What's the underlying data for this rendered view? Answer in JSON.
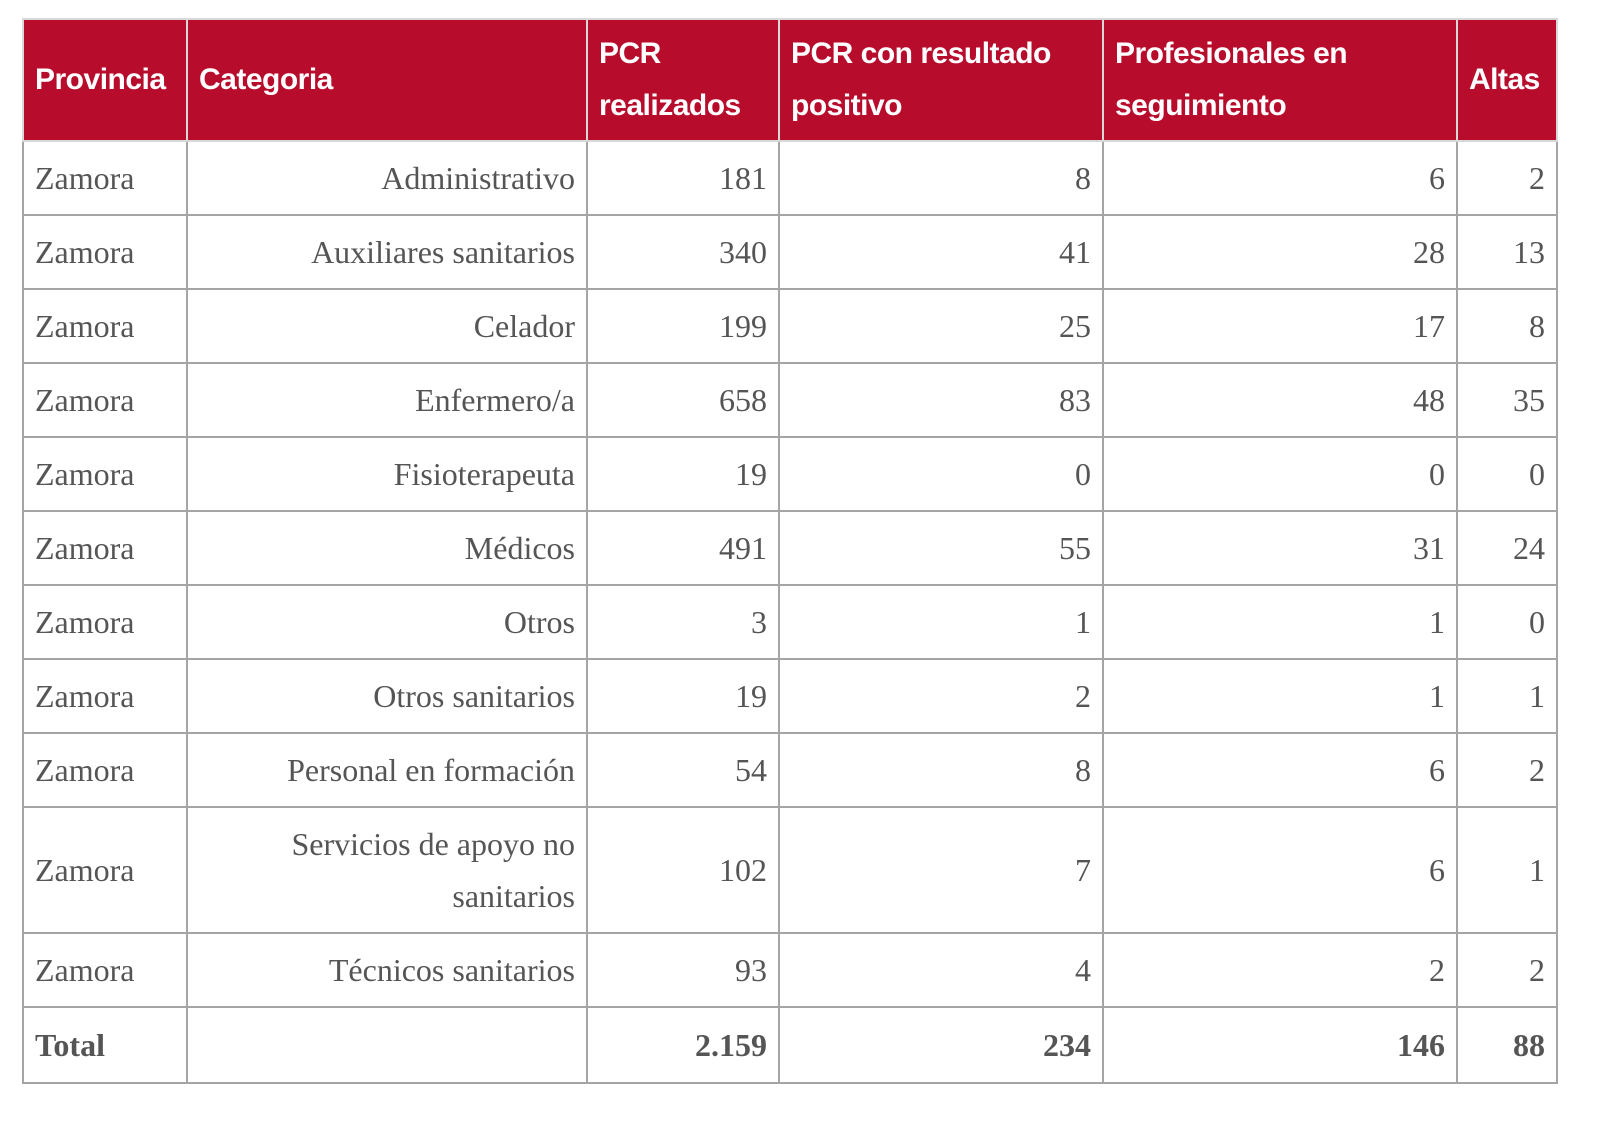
{
  "colors": {
    "header_bg": "#b80c2c",
    "header_text": "#ffffff",
    "cell_text": "#555555",
    "border": "#a5a5a5"
  },
  "headers": [
    "Provincia",
    "Categoria",
    "PCR realizados",
    "PCR con resultado positivo",
    "Profesionales en seguimiento",
    "Altas"
  ],
  "rows": [
    [
      "Zamora",
      "Administrativo",
      "181",
      "8",
      "6",
      "2"
    ],
    [
      "Zamora",
      "Auxiliares sanitarios",
      "340",
      "41",
      "28",
      "13"
    ],
    [
      "Zamora",
      "Celador",
      "199",
      "25",
      "17",
      "8"
    ],
    [
      "Zamora",
      "Enfermero/a",
      "658",
      "83",
      "48",
      "35"
    ],
    [
      "Zamora",
      "Fisioterapeuta",
      "19",
      "0",
      "0",
      "0"
    ],
    [
      "Zamora",
      "Médicos",
      "491",
      "55",
      "31",
      "24"
    ],
    [
      "Zamora",
      "Otros",
      "3",
      "1",
      "1",
      "0"
    ],
    [
      "Zamora",
      "Otros sanitarios",
      "19",
      "2",
      "1",
      "1"
    ],
    [
      "Zamora",
      "Personal en formación",
      "54",
      "8",
      "6",
      "2"
    ],
    [
      "Zamora",
      "Servicios de apoyo no sanitarios",
      "102",
      "7",
      "6",
      "1"
    ],
    [
      "Zamora",
      "Técnicos sanitarios",
      "93",
      "4",
      "2",
      "2"
    ]
  ],
  "total": [
    "Total",
    "",
    "2.159",
    "234",
    "146",
    "88"
  ]
}
